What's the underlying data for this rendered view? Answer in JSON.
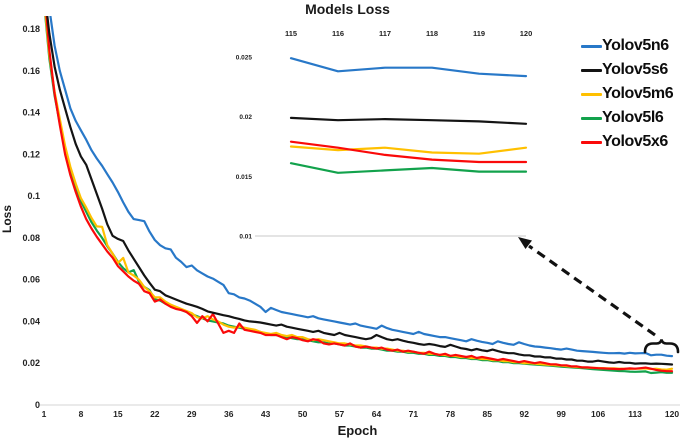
{
  "chart_data": {
    "type": "line",
    "title": "Models Loss",
    "xlabel": "Epoch",
    "ylabel": "Loss",
    "grid": false,
    "legend_position": "right",
    "xlim": [
      1,
      120
    ],
    "ylim": [
      0,
      0.18
    ],
    "x_ticks": [
      1,
      8,
      15,
      22,
      29,
      36,
      43,
      50,
      57,
      64,
      71,
      78,
      85,
      92,
      99,
      106,
      113,
      120
    ],
    "y_ticks": [
      "0.18",
      "0.16",
      "0.14",
      "0.12",
      "0.1",
      "0.08",
      "0.06",
      "0.04",
      "0.02",
      "0"
    ],
    "x_start_epoch": 1,
    "series": [
      {
        "name": "Yolov5n6",
        "color": "#2878C8",
        "values": [
          0.21,
          0.19,
          0.172,
          0.16,
          0.151,
          0.142,
          0.136,
          0.1315,
          0.127,
          0.122,
          0.118,
          0.1145,
          0.1105,
          0.1065,
          0.102,
          0.097,
          0.0925,
          0.089,
          0.0885,
          0.088,
          0.083,
          0.079,
          0.0765,
          0.075,
          0.0745,
          0.0705,
          0.0685,
          0.066,
          0.0668,
          0.0645,
          0.063,
          0.0615,
          0.0605,
          0.059,
          0.0575,
          0.0535,
          0.053,
          0.0515,
          0.051,
          0.05,
          0.0485,
          0.047,
          0.0445,
          0.0465,
          0.0455,
          0.0445,
          0.044,
          0.0435,
          0.043,
          0.0425,
          0.042,
          0.0425,
          0.0415,
          0.041,
          0.0405,
          0.04,
          0.0395,
          0.039,
          0.0385,
          0.039,
          0.038,
          0.0375,
          0.037,
          0.0365,
          0.038,
          0.0368,
          0.036,
          0.0355,
          0.035,
          0.0345,
          0.034,
          0.035,
          0.034,
          0.0335,
          0.033,
          0.0325,
          0.0325,
          0.032,
          0.0315,
          0.031,
          0.0305,
          0.0315,
          0.0308,
          0.0302,
          0.0298,
          0.0292,
          0.0305,
          0.0298,
          0.0292,
          0.0288,
          0.03,
          0.0292,
          0.0285,
          0.028,
          0.0278,
          0.0275,
          0.0272,
          0.0268,
          0.0265,
          0.027,
          0.0265,
          0.026,
          0.0258,
          0.0256,
          0.0254,
          0.0252,
          0.025,
          0.0248,
          0.0248,
          0.0249,
          0.0246,
          0.025,
          0.0247,
          0.0248,
          0.0249,
          0.0238,
          0.0241,
          0.0241,
          0.0236,
          0.0234
        ]
      },
      {
        "name": "Yolov5s6",
        "color": "#141414",
        "values": [
          0.2,
          0.178,
          0.162,
          0.151,
          0.142,
          0.133,
          0.125,
          0.119,
          0.115,
          0.108,
          0.101,
          0.094,
          0.0865,
          0.081,
          0.0795,
          0.0785,
          0.074,
          0.07,
          0.066,
          0.062,
          0.0585,
          0.0552,
          0.0545,
          0.0525,
          0.0515,
          0.0505,
          0.0495,
          0.0485,
          0.0478,
          0.047,
          0.046,
          0.0448,
          0.0442,
          0.0436,
          0.043,
          0.0425,
          0.0418,
          0.0412,
          0.0405,
          0.04,
          0.0398,
          0.0395,
          0.039,
          0.0385,
          0.038,
          0.0385,
          0.0375,
          0.037,
          0.0365,
          0.036,
          0.0355,
          0.035,
          0.0355,
          0.0345,
          0.034,
          0.0335,
          0.0345,
          0.0335,
          0.033,
          0.0325,
          0.032,
          0.0315,
          0.032,
          0.0335,
          0.0325,
          0.0315,
          0.031,
          0.0315,
          0.0308,
          0.0302,
          0.0298,
          0.0292,
          0.0288,
          0.0292,
          0.0288,
          0.0282,
          0.0278,
          0.0288,
          0.028,
          0.0272,
          0.0268,
          0.0262,
          0.0268,
          0.0262,
          0.0258,
          0.0265,
          0.0258,
          0.0252,
          0.0248,
          0.0248,
          0.0242,
          0.0238,
          0.0238,
          0.0232,
          0.0232,
          0.0228,
          0.0228,
          0.0222,
          0.0222,
          0.0218,
          0.0218,
          0.0212,
          0.0212,
          0.0208,
          0.0208,
          0.0212,
          0.0208,
          0.0204,
          0.0202,
          0.0206,
          0.0202,
          0.0202,
          0.0198,
          0.0199,
          0.0199,
          0.0197,
          0.0198,
          0.0197,
          0.0196,
          0.0194
        ]
      },
      {
        "name": "Yolov5m6",
        "color": "#FFC000",
        "values": [
          0.195,
          0.168,
          0.15,
          0.137,
          0.124,
          0.114,
          0.106,
          0.099,
          0.0945,
          0.0895,
          0.0855,
          0.0853,
          0.0765,
          0.0725,
          0.068,
          0.0704,
          0.0635,
          0.062,
          0.06,
          0.0565,
          0.0545,
          0.0515,
          0.0515,
          0.0495,
          0.048,
          0.047,
          0.046,
          0.045,
          0.044,
          0.042,
          0.0415,
          0.0425,
          0.041,
          0.04,
          0.0385,
          0.0375,
          0.037,
          0.0375,
          0.037,
          0.0365,
          0.036,
          0.035,
          0.0345,
          0.034,
          0.0345,
          0.0335,
          0.033,
          0.0335,
          0.0325,
          0.0325,
          0.0315,
          0.031,
          0.0315,
          0.031,
          0.0305,
          0.03,
          0.0295,
          0.0295,
          0.029,
          0.0285,
          0.0285,
          0.028,
          0.0275,
          0.0275,
          0.027,
          0.027,
          0.0265,
          0.026,
          0.026,
          0.0255,
          0.0255,
          0.025,
          0.025,
          0.0245,
          0.0245,
          0.024,
          0.024,
          0.0235,
          0.0235,
          0.023,
          0.023,
          0.0225,
          0.0225,
          0.022,
          0.022,
          0.0215,
          0.0215,
          0.021,
          0.021,
          0.0205,
          0.0205,
          0.02,
          0.02,
          0.0198,
          0.0196,
          0.0194,
          0.0192,
          0.019,
          0.0188,
          0.0186,
          0.0184,
          0.0182,
          0.018,
          0.0179,
          0.0178,
          0.0177,
          0.0176,
          0.0175,
          0.0175,
          0.0174,
          0.0174,
          0.0173,
          0.0174,
          0.0174,
          0.0175,
          0.0172,
          0.0174,
          0.017,
          0.0169,
          0.0174
        ]
      },
      {
        "name": "Yolov5l6",
        "color": "#12A24C",
        "values": [
          0.193,
          0.166,
          0.148,
          0.135,
          0.122,
          0.112,
          0.104,
          0.0975,
          0.0925,
          0.0875,
          0.0835,
          0.08,
          0.076,
          0.0725,
          0.0685,
          0.0655,
          0.0635,
          0.0646,
          0.059,
          0.0565,
          0.055,
          0.0505,
          0.05,
          0.0485,
          0.0475,
          0.0465,
          0.0455,
          0.0445,
          0.0435,
          0.0425,
          0.0415,
          0.0405,
          0.04,
          0.0395,
          0.039,
          0.038,
          0.0375,
          0.037,
          0.0365,
          0.036,
          0.0355,
          0.035,
          0.034,
          0.0335,
          0.0335,
          0.033,
          0.0325,
          0.032,
          0.0315,
          0.0315,
          0.031,
          0.0305,
          0.03,
          0.03,
          0.0295,
          0.0295,
          0.029,
          0.0285,
          0.0285,
          0.028,
          0.0275,
          0.0275,
          0.027,
          0.027,
          0.0265,
          0.026,
          0.026,
          0.0255,
          0.0255,
          0.025,
          0.025,
          0.0245,
          0.0245,
          0.024,
          0.024,
          0.0235,
          0.0235,
          0.023,
          0.023,
          0.0225,
          0.0225,
          0.022,
          0.022,
          0.0215,
          0.0215,
          0.021,
          0.021,
          0.0205,
          0.0205,
          0.02,
          0.02,
          0.0198,
          0.0196,
          0.0194,
          0.0192,
          0.019,
          0.0188,
          0.0186,
          0.0184,
          0.0182,
          0.018,
          0.0178,
          0.0176,
          0.0174,
          0.0172,
          0.017,
          0.0168,
          0.0166,
          0.0164,
          0.0163,
          0.0162,
          0.016,
          0.0159,
          0.016,
          0.0161,
          0.0153,
          0.0155,
          0.0157,
          0.0154,
          0.0154
        ]
      },
      {
        "name": "Yolov5x6",
        "color": "#FA0A0A",
        "values": [
          0.2,
          0.17,
          0.149,
          0.134,
          0.12,
          0.11,
          0.102,
          0.095,
          0.089,
          0.0845,
          0.0805,
          0.077,
          0.0735,
          0.0705,
          0.0665,
          0.064,
          0.0615,
          0.0595,
          0.058,
          0.0545,
          0.0535,
          0.0495,
          0.0505,
          0.0485,
          0.047,
          0.046,
          0.0455,
          0.0445,
          0.0425,
          0.0393,
          0.0425,
          0.04,
          0.0435,
          0.039,
          0.0345,
          0.0355,
          0.0345,
          0.039,
          0.036,
          0.0355,
          0.035,
          0.0345,
          0.0335,
          0.0335,
          0.0335,
          0.0325,
          0.0315,
          0.0325,
          0.032,
          0.031,
          0.0305,
          0.0315,
          0.031,
          0.0295,
          0.029,
          0.0295,
          0.029,
          0.0285,
          0.0295,
          0.028,
          0.0275,
          0.028,
          0.0275,
          0.027,
          0.0275,
          0.0265,
          0.026,
          0.0265,
          0.0255,
          0.026,
          0.0255,
          0.025,
          0.0245,
          0.0255,
          0.0245,
          0.024,
          0.0245,
          0.0235,
          0.024,
          0.0235,
          0.023,
          0.0235,
          0.0225,
          0.023,
          0.0225,
          0.022,
          0.0215,
          0.022,
          0.0215,
          0.021,
          0.0205,
          0.021,
          0.0205,
          0.02,
          0.0205,
          0.02,
          0.0195,
          0.0195,
          0.019,
          0.019,
          0.0185,
          0.0185,
          0.018,
          0.018,
          0.0178,
          0.0176,
          0.0175,
          0.0174,
          0.0173,
          0.0172,
          0.0173,
          0.0175,
          0.0174,
          0.0176,
          0.0179,
          0.0174,
          0.0168,
          0.0164,
          0.0162,
          0.0162
        ]
      }
    ],
    "inset": {
      "x_ticks": [
        115,
        116,
        117,
        118,
        119,
        120
      ],
      "y_ticks": [
        "0.025",
        "0.02",
        "0.015",
        "0.01"
      ],
      "xlim": [
        115,
        120
      ],
      "ylim": [
        0.01,
        0.025
      ],
      "note": "values for epochs 115-120 are the last six points of each main series"
    }
  }
}
